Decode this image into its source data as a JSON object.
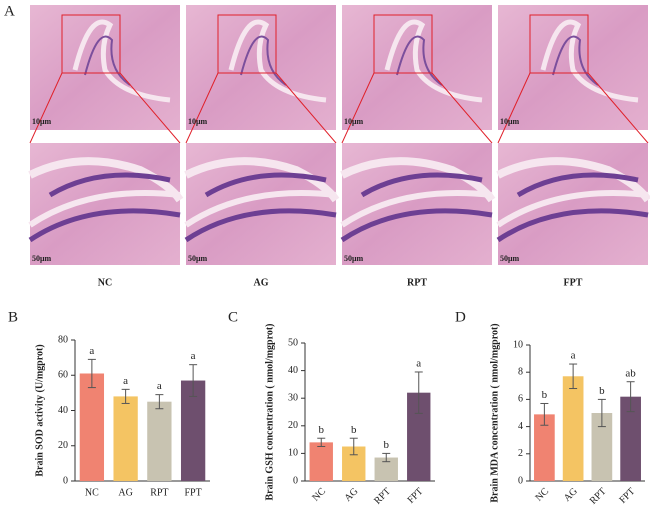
{
  "panel_a": {
    "label": "A",
    "groups": [
      "NC",
      "AG",
      "RPT",
      "FPT"
    ],
    "scale_top": "10μm",
    "scale_bottom": "50μm"
  },
  "chart_data": [
    {
      "type": "bar",
      "panel": "B",
      "y_label": "Brain SOD activity (U/mgprot)",
      "categories": [
        "NC",
        "AG",
        "RPT",
        "FPT"
      ],
      "values": [
        61,
        48,
        45,
        57
      ],
      "errors": [
        8,
        4,
        4,
        9
      ],
      "annotations": [
        "a",
        "a",
        "a",
        "a"
      ],
      "colors": [
        "#f08371",
        "#f4c463",
        "#c8c3b1",
        "#6e4f6e"
      ],
      "ylim": [
        0,
        80
      ],
      "yticks": [
        0,
        20,
        40,
        60,
        80
      ],
      "rotate_xlabels": false
    },
    {
      "type": "bar",
      "panel": "C",
      "y_label": "Brain GSH concentration ( nmol/mgprot)",
      "categories": [
        "NC",
        "AG",
        "RPT",
        "FPT"
      ],
      "values": [
        14,
        12.5,
        8.5,
        32
      ],
      "errors": [
        1.5,
        3,
        1.5,
        7.5
      ],
      "annotations": [
        "b",
        "b",
        "b",
        "a"
      ],
      "colors": [
        "#f08371",
        "#f4c463",
        "#c8c3b1",
        "#6e4f6e"
      ],
      "ylim": [
        0,
        50
      ],
      "yticks": [
        0,
        10,
        20,
        30,
        40,
        50
      ],
      "rotate_xlabels": true
    },
    {
      "type": "bar",
      "panel": "D",
      "y_label": "Brain MDA concentration ( nmol/mgprot)",
      "categories": [
        "NC",
        "AG",
        "RPT",
        "FPT"
      ],
      "values": [
        4.9,
        7.7,
        5.0,
        6.2
      ],
      "errors": [
        0.8,
        0.9,
        1.0,
        1.1
      ],
      "annotations": [
        "b",
        "a",
        "b",
        "ab"
      ],
      "colors": [
        "#f08371",
        "#f4c463",
        "#c8c3b1",
        "#6e4f6e"
      ],
      "ylim": [
        0,
        10
      ],
      "yticks": [
        0,
        2,
        4,
        6,
        8,
        10
      ],
      "rotate_xlabels": true
    }
  ]
}
